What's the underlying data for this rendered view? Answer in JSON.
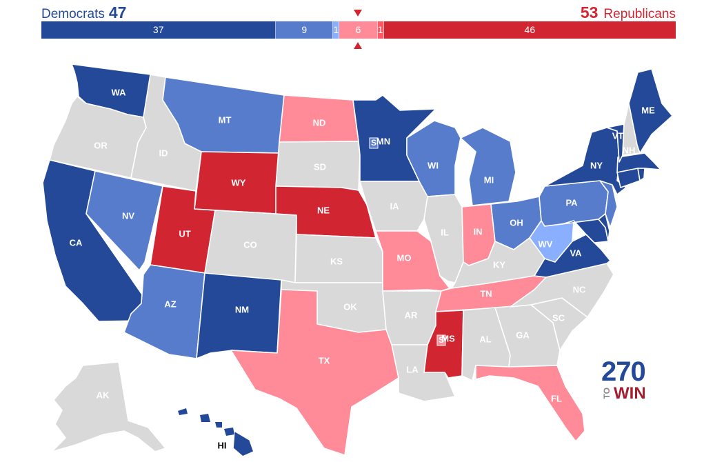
{
  "header": {
    "dem_name": "Democrats",
    "dem_total": "47",
    "rep_total": "53",
    "rep_name": "Republicans"
  },
  "bar": [
    {
      "label": "37",
      "seats": 37,
      "category": "safe-dem",
      "color": "#244999"
    },
    {
      "label": "9",
      "seats": 9,
      "category": "likely-dem",
      "color": "#577ccc"
    },
    {
      "label": "1",
      "seats": 1,
      "category": "leans-dem",
      "color": "#8aafff"
    },
    {
      "label": "6",
      "seats": 6,
      "category": "leans-rep",
      "color": "#ff8b98"
    },
    {
      "label": "1",
      "seats": 1,
      "category": "likely-rep",
      "color": "#ff5865"
    },
    {
      "label": "46",
      "seats": 46,
      "category": "safe-rep",
      "color": "#d22532"
    }
  ],
  "colors": {
    "safe-dem": "#244999",
    "likely-dem": "#577ccc",
    "leans-dem": "#8aafff",
    "leans-rep": "#ff8b98",
    "safe-rep": "#d22532",
    "no-race": "#d9d9d9",
    "border": "#ffffff"
  },
  "states": [
    {
      "abbr": "WA",
      "category": "safe-dem"
    },
    {
      "abbr": "OR",
      "category": "no-race"
    },
    {
      "abbr": "CA",
      "category": "safe-dem"
    },
    {
      "abbr": "ID",
      "category": "no-race"
    },
    {
      "abbr": "NV",
      "category": "likely-dem"
    },
    {
      "abbr": "UT",
      "category": "safe-rep"
    },
    {
      "abbr": "AZ",
      "category": "likely-dem"
    },
    {
      "abbr": "MT",
      "category": "likely-dem"
    },
    {
      "abbr": "WY",
      "category": "safe-rep"
    },
    {
      "abbr": "CO",
      "category": "no-race"
    },
    {
      "abbr": "NM",
      "category": "safe-dem"
    },
    {
      "abbr": "ND",
      "category": "leans-rep"
    },
    {
      "abbr": "SD",
      "category": "no-race"
    },
    {
      "abbr": "NE",
      "category": "safe-rep"
    },
    {
      "abbr": "KS",
      "category": "no-race"
    },
    {
      "abbr": "OK",
      "category": "no-race"
    },
    {
      "abbr": "TX",
      "category": "leans-rep"
    },
    {
      "abbr": "MN",
      "category": "safe-dem"
    },
    {
      "abbr": "IA",
      "category": "no-race"
    },
    {
      "abbr": "MO",
      "category": "leans-rep"
    },
    {
      "abbr": "AR",
      "category": "no-race"
    },
    {
      "abbr": "LA",
      "category": "no-race"
    },
    {
      "abbr": "WI",
      "category": "likely-dem"
    },
    {
      "abbr": "IL",
      "category": "no-race"
    },
    {
      "abbr": "MI",
      "category": "likely-dem"
    },
    {
      "abbr": "IN",
      "category": "leans-rep"
    },
    {
      "abbr": "OH",
      "category": "likely-dem"
    },
    {
      "abbr": "KY",
      "category": "no-race"
    },
    {
      "abbr": "TN",
      "category": "leans-rep"
    },
    {
      "abbr": "MS",
      "category": "safe-rep"
    },
    {
      "abbr": "AL",
      "category": "no-race"
    },
    {
      "abbr": "GA",
      "category": "no-race"
    },
    {
      "abbr": "FL",
      "category": "leans-rep"
    },
    {
      "abbr": "SC",
      "category": "no-race"
    },
    {
      "abbr": "NC",
      "category": "no-race"
    },
    {
      "abbr": "VA",
      "category": "safe-dem"
    },
    {
      "abbr": "WV",
      "category": "leans-dem"
    },
    {
      "abbr": "PA",
      "category": "likely-dem"
    },
    {
      "abbr": "NY",
      "category": "safe-dem"
    },
    {
      "abbr": "VT",
      "category": "safe-dem"
    },
    {
      "abbr": "NH",
      "category": "no-race"
    },
    {
      "abbr": "ME",
      "category": "safe-dem"
    },
    {
      "abbr": "AK",
      "category": "no-race"
    },
    {
      "abbr": "HI",
      "category": "safe-dem"
    }
  ],
  "special_markers": {
    "mn": "S",
    "ms": "S"
  },
  "logo": {
    "number": "270",
    "to": "TO",
    "win": "WIN"
  }
}
